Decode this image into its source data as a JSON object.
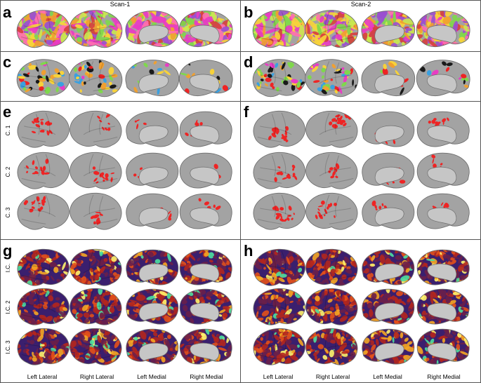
{
  "columns": [
    {
      "title": "Scan-1"
    },
    {
      "title": "Scan-2"
    }
  ],
  "panels": {
    "a": {
      "letter": "a",
      "style": "parcel-dense"
    },
    "b": {
      "letter": "b",
      "style": "parcel-dense"
    },
    "c": {
      "letter": "c",
      "style": "parcel-sparse"
    },
    "d": {
      "letter": "d",
      "style": "parcel-sparse"
    },
    "e": {
      "letter": "e",
      "style": "cluster-red"
    },
    "f": {
      "letter": "f",
      "style": "cluster-red"
    },
    "g": {
      "letter": "g",
      "style": "heat"
    },
    "h": {
      "letter": "h",
      "style": "heat"
    }
  },
  "cluster_labels": [
    "C. 1",
    "C. 2",
    "C. 3"
  ],
  "ic_labels": [
    "I.C.",
    "I.C. 2",
    "I.C. 3"
  ],
  "view_labels": [
    "Left Lateral",
    "Right Lateral",
    "Left Medial",
    "Right Medial"
  ],
  "colors": {
    "brain": "#a3a3a3",
    "brain_edge": "#6e6e6e",
    "medial_wall": "#c6c6c6",
    "cluster_red": "#ee2424",
    "heat_base": "#3a1f6e",
    "parcel_palette": [
      "#e83cc4",
      "#f7d23a",
      "#7fd84c",
      "#f0a030",
      "#d64040",
      "#9a4fd0",
      "#ff6fb0",
      "#c8e850"
    ],
    "sparse_palette": [
      "#3aa0e0",
      "#7fd84c",
      "#f7d23a",
      "#e83cc4",
      "#ee2424",
      "#1a1a1a",
      "#f0a030"
    ],
    "heat_palette": [
      "#2a1a5e",
      "#6a1f4a",
      "#b3261e",
      "#e3501a",
      "#f5a623",
      "#fff36b",
      "#4de0a0"
    ]
  }
}
